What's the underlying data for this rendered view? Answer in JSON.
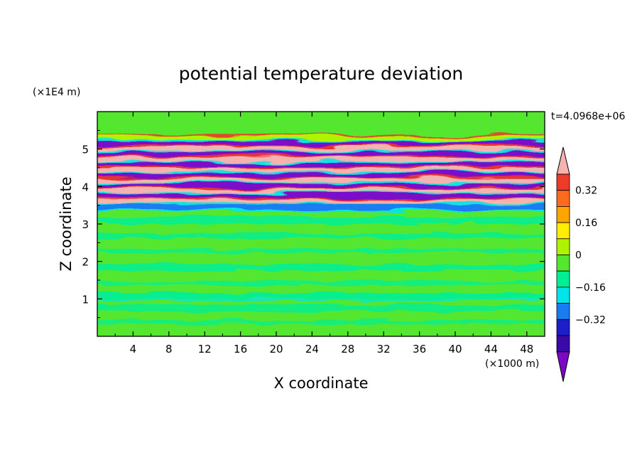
{
  "chart_data": {
    "type": "heatmap",
    "title": "potential temperature deviation",
    "xlabel": "X coordinate",
    "ylabel": "Z coordinate",
    "x_unit": "(×1000 m)",
    "y_unit": "(×1E4 m)",
    "time_label": "t=4.0968e+06",
    "x_ticks": [
      "4",
      "8",
      "12",
      "16",
      "20",
      "24",
      "28",
      "32",
      "36",
      "40",
      "44",
      "48"
    ],
    "y_ticks": [
      "1",
      "2",
      "3",
      "4",
      "5"
    ],
    "xlim": [
      0,
      50
    ],
    "ylim": [
      0,
      6
    ],
    "colorbar": {
      "labels": [
        "0.32",
        "0.16",
        "0",
        "−0.16",
        "−0.32"
      ],
      "colors": [
        "#f4b3ae",
        "#ee3a28",
        "#ff6a1e",
        "#ffa500",
        "#ffee00",
        "#aef400",
        "#55e630",
        "#00ef96",
        "#00e6e8",
        "#1a7cf2",
        "#1c1ec8",
        "#3a0aa8",
        "#7b08c8"
      ]
    },
    "bands": [
      {
        "z": 5.28,
        "value": 0.08
      },
      {
        "z": 5.12,
        "value": -0.4
      },
      {
        "z": 4.98,
        "value": 0.45
      },
      {
        "z": 4.84,
        "value": -0.45
      },
      {
        "z": 4.7,
        "value": 0.45
      },
      {
        "z": 4.56,
        "value": -0.45
      },
      {
        "z": 4.42,
        "value": 0.45
      },
      {
        "z": 4.28,
        "value": -0.45
      },
      {
        "z": 4.14,
        "value": 0.45
      },
      {
        "z": 4.0,
        "value": -0.45
      },
      {
        "z": 3.86,
        "value": 0.45
      },
      {
        "z": 3.72,
        "value": -0.45
      },
      {
        "z": 3.58,
        "value": 0.45
      },
      {
        "z": 3.45,
        "value": -0.3
      }
    ]
  }
}
